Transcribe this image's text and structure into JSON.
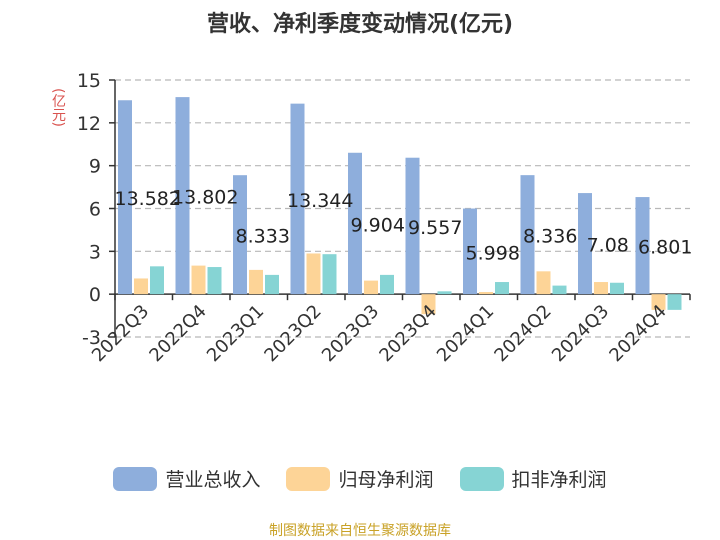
{
  "title": "营收、净利季度变动情况(亿元)",
  "unit": "(亿元)",
  "source": "制图数据来自恒生聚源数据库",
  "colors": {
    "revenue": "#8eaedc",
    "net_profit": "#fdd497",
    "deducted_profit": "#86d4d4",
    "grid": "#b8b8b8",
    "axis": "#333333"
  },
  "chart_data": {
    "type": "bar",
    "categories": [
      "2022Q3",
      "2022Q4",
      "2023Q1",
      "2023Q2",
      "2023Q3",
      "2023Q4",
      "2024Q1",
      "2024Q2",
      "2024Q3",
      "2024Q4"
    ],
    "series": [
      {
        "name": "营业总收入",
        "values": [
          13.582,
          13.802,
          8.333,
          13.344,
          9.904,
          9.557,
          5.998,
          8.336,
          7.08,
          6.801
        ]
      },
      {
        "name": "归母净利润",
        "values": [
          1.1,
          2.0,
          1.7,
          2.85,
          0.95,
          -1.4,
          0.15,
          1.6,
          0.85,
          -1.1
        ]
      },
      {
        "name": "扣非净利润",
        "values": [
          1.95,
          1.9,
          1.35,
          2.8,
          1.35,
          0.2,
          0.85,
          0.6,
          0.8,
          -1.1
        ]
      }
    ],
    "data_labels": [
      "13.582",
      "13.802",
      "8.333",
      "13.344",
      "9.904",
      "9.557",
      "5.998",
      "8.336",
      "7.08",
      "6.801"
    ],
    "y_ticks": [
      "15",
      "12",
      "9",
      "6",
      "3",
      "0",
      "-3"
    ],
    "ylim": [
      -3,
      15
    ],
    "grid": true,
    "legend_position": "bottom"
  }
}
